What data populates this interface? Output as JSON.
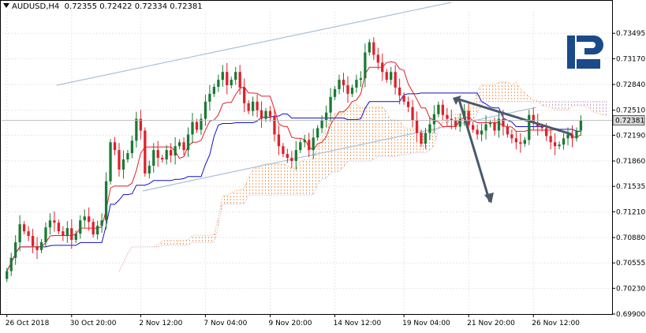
{
  "header": {
    "symbol": "AUDUSD,H4",
    "ohlc": "0.72355 0.72422 0.72334 0.72381"
  },
  "colors": {
    "bull": "#1a7a34",
    "bear": "#e0202a",
    "tenkan": "#e0202a",
    "kijun": "#1010c8",
    "cloud_bull": "#f0a060",
    "cloud_bear": "#c8a0d0",
    "channel": "#a8c0d8",
    "arrow": "#4a5a6a",
    "grid": "#e6e6e6",
    "current_price_bg": "#d8d8d8"
  },
  "logo": {
    "icon": "broker-logo-icon",
    "color": "#1a4a8a"
  },
  "chart_data": {
    "type": "candlestick",
    "symbol": "AUDUSD",
    "timeframe": "H4",
    "ylim": [
      0.699,
      0.7378
    ],
    "y_ticks": [
      "0.73495",
      "0.73170",
      "0.72840",
      "0.72510",
      "0.72190",
      "0.71860",
      "0.71535",
      "0.71210",
      "0.70880",
      "0.70555",
      "0.70230",
      "0.69900"
    ],
    "x_ticks": [
      "26 Oct 2018",
      "30 Oct 20:00",
      "2 Nov 12:00",
      "7 Nov 04:00",
      "9 Nov 20:00",
      "14 Nov 12:00",
      "19 Nov 04:00",
      "21 Nov 20:00",
      "26 Nov 12:00"
    ],
    "current_price": "0.72381",
    "closes": [
      0.7045,
      0.7062,
      0.7082,
      0.7105,
      0.7096,
      0.709,
      0.7077,
      0.7072,
      0.7082,
      0.7101,
      0.711,
      0.7107,
      0.7096,
      0.709,
      0.71,
      0.7085,
      0.7093,
      0.711,
      0.7115,
      0.7108,
      0.7092,
      0.7103,
      0.711,
      0.716,
      0.721,
      0.72,
      0.7175,
      0.7188,
      0.7196,
      0.7212,
      0.724,
      0.7225,
      0.717,
      0.718,
      0.72,
      0.719,
      0.7188,
      0.72,
      0.7193,
      0.7205,
      0.721,
      0.72,
      0.722,
      0.7236,
      0.7226,
      0.724,
      0.7262,
      0.7272,
      0.7281,
      0.729,
      0.73,
      0.7283,
      0.729,
      0.73,
      0.728,
      0.726,
      0.725,
      0.7262,
      0.7251,
      0.724,
      0.725,
      0.7243,
      0.722,
      0.7205,
      0.7195,
      0.719,
      0.7186,
      0.72,
      0.721,
      0.7213,
      0.72,
      0.7216,
      0.7228,
      0.7238,
      0.7248,
      0.7268,
      0.7278,
      0.729,
      0.7283,
      0.7272,
      0.728,
      0.729,
      0.7292,
      0.7325,
      0.7338,
      0.7322,
      0.7312,
      0.73,
      0.729,
      0.73,
      0.728,
      0.727,
      0.7262,
      0.7255,
      0.7238,
      0.7222,
      0.7208,
      0.7222,
      0.7233,
      0.7246,
      0.7258,
      0.7245,
      0.724,
      0.7238,
      0.723,
      0.724,
      0.725,
      0.7232,
      0.7226,
      0.722,
      0.7225,
      0.7233,
      0.7235,
      0.7225,
      0.724,
      0.723,
      0.722,
      0.7215,
      0.721,
      0.7208,
      0.7213,
      0.7245,
      0.7235,
      0.723,
      0.7228,
      0.7218,
      0.721,
      0.7205,
      0.7207,
      0.7215,
      0.722,
      0.7215,
      0.7225,
      0.7238
    ]
  }
}
